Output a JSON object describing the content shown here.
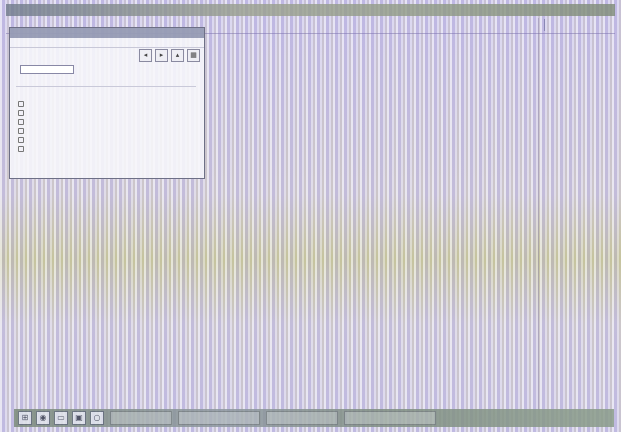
{
  "window": {
    "title": "",
    "topstrip_left": "",
    "topstrip_right": ""
  },
  "dialog": {
    "title": "",
    "menu": [
      "",
      "",
      ""
    ],
    "toolbar": [
      {
        "icon": "back-icon",
        "glyph": "◂"
      },
      {
        "icon": "forward-icon",
        "glyph": "▸"
      },
      {
        "icon": "up-icon",
        "glyph": "▴"
      },
      {
        "icon": "view-icon",
        "glyph": "▦"
      }
    ],
    "search": {
      "label": "",
      "value": "",
      "placeholder": "",
      "right_text": ""
    },
    "list_header": {
      "left": "",
      "right": ""
    },
    "rows": [
      {
        "name": "",
        "value": ""
      },
      {
        "name": "",
        "value": ""
      },
      {
        "name": "",
        "value": ""
      },
      {
        "name": "",
        "value": ""
      },
      {
        "name": "",
        "value": ""
      },
      {
        "name": "",
        "value": ""
      }
    ],
    "footer": {
      "left": "",
      "right": "",
      "mid": "",
      "status": ""
    }
  },
  "taskbar": {
    "icons": [
      {
        "icon": "start-icon",
        "glyph": "⊞"
      },
      {
        "icon": "browser-icon",
        "glyph": "◉"
      },
      {
        "icon": "folder-icon",
        "glyph": "▭"
      },
      {
        "icon": "app-icon",
        "glyph": "▣"
      },
      {
        "icon": "search-icon",
        "glyph": "○"
      }
    ],
    "clock": ""
  }
}
